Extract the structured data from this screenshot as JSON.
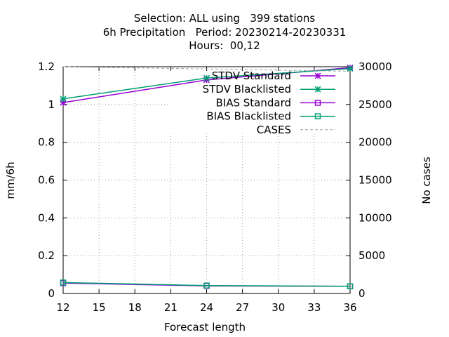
{
  "title_lines": [
    "Selection: ALL using   399 stations",
    "6h Precipitation   Period: 20230214-20230331",
    "Hours:  00,12"
  ],
  "chart_data": {
    "type": "line",
    "title": "Selection: ALL using   399 stations\n6h Precipitation   Period: 20230214-20230331\nHours:  00,12",
    "xlabel": "Forecast length",
    "ylabel": "mm/6h",
    "y2label": "No cases",
    "x": [
      12,
      24,
      36
    ],
    "xlim": [
      12,
      36
    ],
    "ylim": [
      0,
      1.2
    ],
    "y2lim": [
      0,
      30000
    ],
    "xticks": [
      "12",
      "15",
      "18",
      "21",
      "24",
      "27",
      "30",
      "33",
      "36"
    ],
    "yticks": [
      "0",
      "0.2",
      "0.4",
      "0.6",
      "0.8",
      "1",
      "1.2"
    ],
    "y2ticks": [
      "0",
      "5000",
      "10000",
      "15000",
      "20000",
      "25000",
      "30000"
    ],
    "grid": true,
    "legend_position": "top-right",
    "series": [
      {
        "name": "STDV Standard",
        "axis": "y",
        "values": [
          1.01,
          1.13,
          1.195
        ],
        "color": "#9400d3",
        "marker": "x-star",
        "dash": "solid"
      },
      {
        "name": "STDV Blacklisted",
        "axis": "y",
        "values": [
          1.03,
          1.14,
          1.19
        ],
        "color": "#009e73",
        "marker": "x-star",
        "dash": "solid"
      },
      {
        "name": "BIAS Standard",
        "axis": "y",
        "values": [
          0.055,
          0.04,
          0.038
        ],
        "color": "#9400d3",
        "marker": "square",
        "dash": "solid"
      },
      {
        "name": "BIAS Blacklisted",
        "axis": "y",
        "values": [
          0.058,
          0.042,
          0.038
        ],
        "color": "#009e73",
        "marker": "square",
        "dash": "solid"
      },
      {
        "name": "CASES",
        "axis": "y2",
        "values": [
          30000,
          29700,
          29400
        ],
        "color": "#a0a0a0",
        "marker": "none",
        "dash": "dashed"
      }
    ]
  }
}
